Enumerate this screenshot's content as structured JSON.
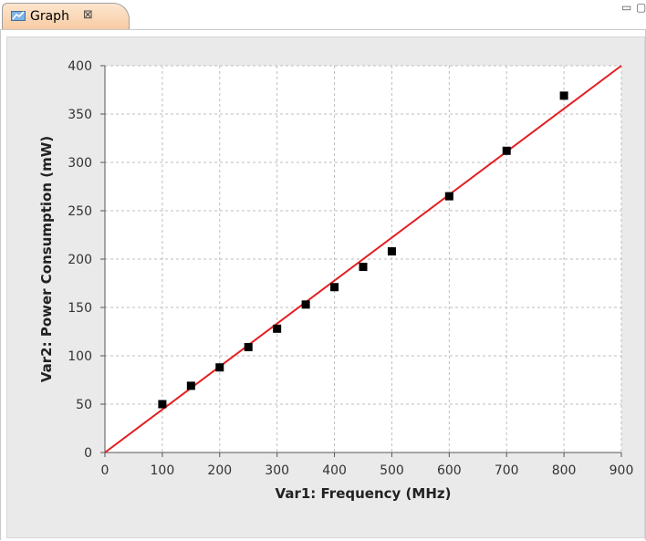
{
  "tab": {
    "title": "Graph",
    "close_glyph": "⊠"
  },
  "window_controls": {
    "minimize_glyph": "▭",
    "maximize_glyph": "▢"
  },
  "colors": {
    "fit_line": "#e41f1f",
    "markers": "#000000",
    "grid": "#bdbdbd",
    "plot_bg": "#ffffff",
    "panel_bg": "#eaeaea"
  },
  "icons": {
    "tab_icon": "graph-icon"
  },
  "chart_data": {
    "type": "scatter",
    "title": "",
    "xlabel": "Var1: Frequency (MHz)",
    "ylabel": "Var2: Power Consumption (mW)",
    "xlim": [
      0,
      900
    ],
    "ylim": [
      0,
      400
    ],
    "xticks": [
      0,
      100,
      200,
      300,
      400,
      500,
      600,
      700,
      800,
      900
    ],
    "yticks": [
      0,
      50,
      100,
      150,
      200,
      250,
      300,
      350,
      400
    ],
    "grid": true,
    "points": [
      {
        "x": 100,
        "y": 50
      },
      {
        "x": 150,
        "y": 69
      },
      {
        "x": 200,
        "y": 88
      },
      {
        "x": 250,
        "y": 109
      },
      {
        "x": 300,
        "y": 128
      },
      {
        "x": 350,
        "y": 153
      },
      {
        "x": 400,
        "y": 171
      },
      {
        "x": 450,
        "y": 192
      },
      {
        "x": 500,
        "y": 208
      },
      {
        "x": 600,
        "y": 265
      },
      {
        "x": 700,
        "y": 312
      },
      {
        "x": 800,
        "y": 369
      }
    ],
    "fit_line": {
      "x1": 0,
      "y1": 0,
      "x2": 900,
      "y2": 400
    }
  }
}
